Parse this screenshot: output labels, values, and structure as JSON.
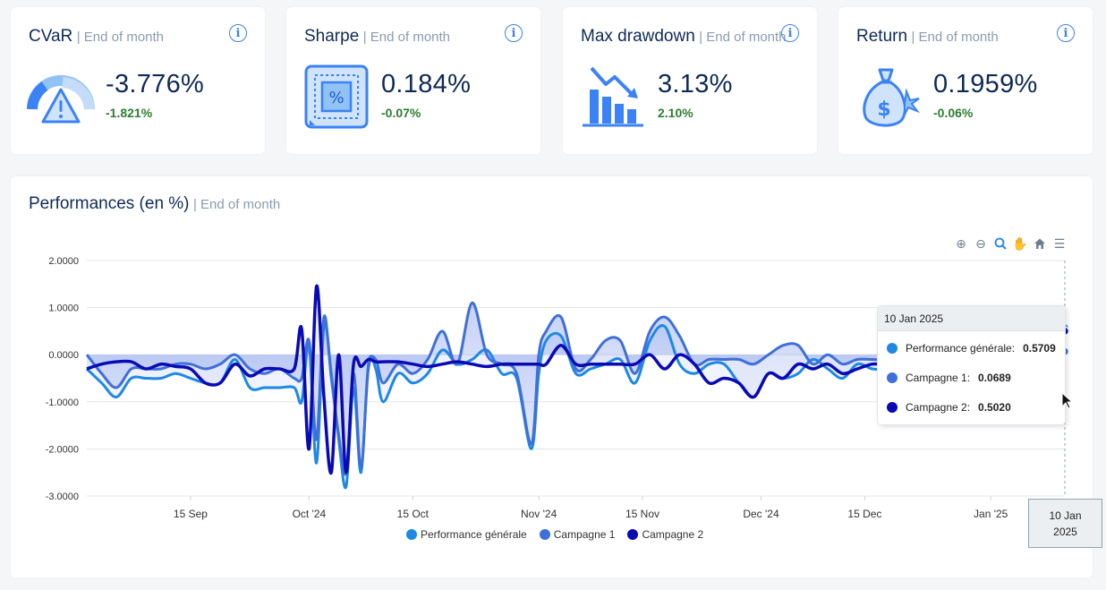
{
  "kpis": [
    {
      "title": "CVaR",
      "subtitle": "| End of month",
      "value": "-3.776%",
      "delta": "-1.821%",
      "icon": "warning-gauge-icon"
    },
    {
      "title": "Sharpe",
      "subtitle": "| End of month",
      "value": "0.184%",
      "delta": "-0.07%",
      "icon": "percent-chip-icon"
    },
    {
      "title": "Max drawdown",
      "subtitle": "| End of month",
      "value": "3.13%",
      "delta": "2.10%",
      "icon": "declining-bar-chart-icon"
    },
    {
      "title": "Return",
      "subtitle": "| End of month",
      "value": "0.1959%",
      "delta": "-0.06%",
      "icon": "money-bag-icon"
    }
  ],
  "performance": {
    "title": "Performances (en %)",
    "subtitle": "| End of month",
    "toolbar": [
      "zoom-in-icon",
      "zoom-out-icon",
      "selection-zoom-icon",
      "pan-hand-icon",
      "home-reset-icon",
      "menu-icon"
    ],
    "tooltip": {
      "date": "10 Jan 2025",
      "rows": [
        {
          "label": "Performance générale:",
          "value": "0.5709",
          "color": "#1e88e5"
        },
        {
          "label": "Campagne 1:",
          "value": "0.0689",
          "color": "#3f6fd8"
        },
        {
          "label": "Campagne 2:",
          "value": "0.5020",
          "color": "#0a0ab5"
        }
      ]
    },
    "xaxis_tooltip": {
      "line1": "10 Jan",
      "line2": "2025"
    },
    "legend": [
      {
        "label": "Performance générale",
        "color": "#1e88e5"
      },
      {
        "label": "Campagne 1",
        "color": "#3f6fd8"
      },
      {
        "label": "Campagne 2",
        "color": "#0a0ab5"
      }
    ]
  },
  "chart_data": {
    "type": "area",
    "title": "",
    "xlabel": "",
    "ylabel": "",
    "ylim": [
      -3,
      2
    ],
    "yticks": [
      "2.0000",
      "1.0000",
      "0.0000",
      "-1.0000",
      "-2.0000",
      "-3.0000"
    ],
    "xticks": [
      "15 Sep",
      "Oct '24",
      "15 Oct",
      "Nov '24",
      "15 Nov",
      "Dec '24",
      "15 Dec",
      "Jan '25"
    ],
    "xtick_days": [
      14,
      30,
      44,
      61,
      75,
      91,
      105,
      122
    ],
    "x_start": "2024-08-31",
    "grid": true,
    "legend_position": "bottom",
    "series": [
      {
        "name": "Performance générale",
        "color": "#1e88e5",
        "x": [
          0,
          2,
          4,
          6,
          8,
          10,
          12,
          14,
          16,
          18,
          20,
          22,
          24,
          26,
          28,
          29,
          30,
          31,
          32,
          33,
          34,
          35,
          36,
          37,
          38,
          39,
          40,
          42,
          44,
          46,
          48,
          50,
          52,
          54,
          56,
          58,
          60,
          61,
          62,
          64,
          66,
          68,
          70,
          72,
          74,
          76,
          78,
          80,
          82,
          84,
          86,
          88,
          90,
          92,
          94,
          96,
          98,
          100,
          102,
          104,
          106,
          108,
          110,
          112,
          114,
          116,
          118,
          120,
          122,
          124,
          126,
          130,
          132
        ],
        "y": [
          -0.3,
          -0.6,
          -0.9,
          -0.5,
          -0.5,
          -0.5,
          -0.4,
          -0.5,
          -0.6,
          -0.6,
          -0.1,
          -0.7,
          -0.7,
          -0.7,
          -0.7,
          -1.0,
          0.2,
          -2.3,
          0.6,
          -0.4,
          -1.8,
          -2.8,
          -0.7,
          -2.5,
          -0.2,
          -0.3,
          -1.0,
          -0.4,
          -0.6,
          -0.4,
          0.1,
          -0.2,
          -0.1,
          0.1,
          -0.4,
          -0.5,
          -2.0,
          -0.4,
          0.3,
          0.4,
          -0.4,
          -0.3,
          -0.2,
          -0.1,
          -0.6,
          0.3,
          0.6,
          -0.2,
          -0.4,
          -0.2,
          -0.2,
          -0.6,
          -0.9,
          -0.4,
          -0.5,
          -0.4,
          -0.1,
          -0.3,
          -0.5,
          -0.2,
          -0.3,
          -0.3,
          -0.2,
          -0.1,
          0.1,
          0.2,
          0.3,
          0.4,
          0.5,
          0.5,
          0.5,
          0.5709,
          0.5709
        ]
      },
      {
        "name": "Campagne 1",
        "color": "#3f6fd8",
        "x": [
          0,
          2,
          4,
          6,
          8,
          10,
          12,
          14,
          16,
          18,
          20,
          22,
          24,
          26,
          28,
          29,
          30,
          31,
          32,
          33,
          34,
          35,
          36,
          37,
          38,
          39,
          40,
          42,
          44,
          46,
          48,
          50,
          52,
          54,
          56,
          58,
          60,
          61,
          62,
          64,
          66,
          68,
          70,
          72,
          74,
          76,
          78,
          80,
          82,
          84,
          86,
          88,
          90,
          92,
          94,
          96,
          98,
          100,
          102,
          104,
          106,
          108,
          110,
          112,
          114,
          116,
          118,
          120,
          122,
          124,
          126,
          130,
          132
        ],
        "y": [
          0.0,
          -0.4,
          -0.7,
          -0.3,
          -0.3,
          -0.3,
          -0.2,
          -0.2,
          -0.3,
          -0.2,
          0.0,
          -0.3,
          -0.4,
          -0.3,
          -0.5,
          -0.5,
          0.3,
          -1.8,
          0.8,
          -0.5,
          -1.7,
          -2.5,
          -0.4,
          -2.4,
          -0.3,
          -0.1,
          -0.6,
          -0.2,
          -0.4,
          -0.1,
          0.5,
          -0.2,
          1.1,
          0.0,
          -0.2,
          -0.4,
          -1.9,
          0.0,
          0.5,
          0.8,
          -0.3,
          -0.1,
          0.3,
          0.3,
          -0.4,
          0.5,
          0.8,
          0.4,
          -0.2,
          -0.1,
          -0.1,
          -0.1,
          -0.2,
          0.0,
          0.2,
          0.2,
          -0.2,
          0.0,
          -0.2,
          -0.1,
          -0.1,
          -0.1,
          0.0,
          0.1,
          0.1,
          0.0,
          0.0,
          0.05,
          0.0689,
          0.0689,
          0.0689,
          0.0689,
          0.0689
        ]
      },
      {
        "name": "Campagne 2",
        "color": "#0a0ab5",
        "x": [
          0,
          2,
          4,
          6,
          8,
          10,
          12,
          14,
          16,
          18,
          20,
          22,
          24,
          26,
          28,
          29,
          30,
          31,
          32,
          33,
          34,
          35,
          36,
          37,
          38,
          39,
          40,
          42,
          44,
          46,
          48,
          50,
          52,
          54,
          56,
          58,
          60,
          61,
          62,
          64,
          66,
          68,
          70,
          72,
          74,
          76,
          78,
          80,
          82,
          84,
          86,
          88,
          90,
          92,
          94,
          96,
          98,
          100,
          102,
          104,
          106,
          108,
          110,
          112,
          114,
          116,
          118,
          120,
          122,
          124,
          126,
          130,
          132
        ],
        "y": [
          -0.3,
          -0.2,
          -0.15,
          -0.15,
          -0.3,
          -0.2,
          -0.25,
          -0.3,
          -0.6,
          -0.6,
          -0.2,
          -0.45,
          -0.3,
          -0.3,
          -0.3,
          0.55,
          -2.0,
          1.45,
          -0.9,
          -2.5,
          0.0,
          -2.5,
          -0.2,
          -0.25,
          -0.1,
          -0.15,
          -0.15,
          -0.15,
          -0.2,
          -0.25,
          -0.2,
          -0.15,
          -0.2,
          -0.25,
          -0.2,
          -0.2,
          -0.2,
          -0.2,
          -0.2,
          0.2,
          -0.2,
          -0.2,
          -0.2,
          -0.2,
          -0.2,
          0.0,
          -0.3,
          0.0,
          -0.2,
          -0.6,
          -0.5,
          -0.6,
          -0.9,
          -0.4,
          -0.5,
          -0.2,
          -0.3,
          -0.2,
          -0.4,
          -0.3,
          -0.2,
          -0.2,
          -0.1,
          0.1,
          0.2,
          0.3,
          0.4,
          0.45,
          0.48,
          0.5,
          0.5,
          0.502,
          0.502
        ]
      }
    ]
  }
}
